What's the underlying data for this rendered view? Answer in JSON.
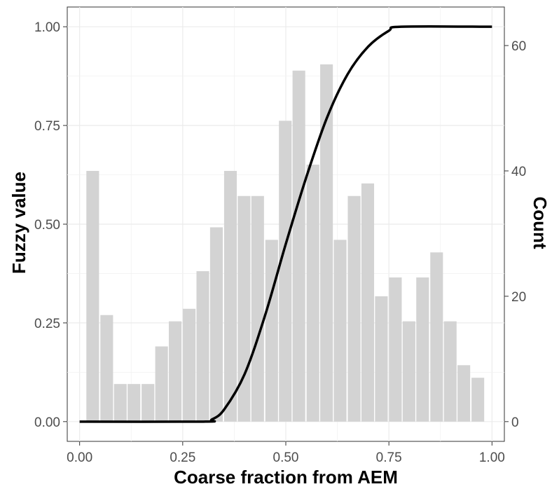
{
  "chart_data": {
    "type": "bar",
    "xlabel": "Coarse fraction from AEM",
    "ylabel": "Fuzzy value",
    "y2label": "Count",
    "xlim": [
      -0.03,
      1.03
    ],
    "ylim": [
      -0.05,
      1.05
    ],
    "y2lim": [
      -3.15,
      66.15
    ],
    "x_ticks": [
      "0.00",
      "0.25",
      "0.50",
      "0.75",
      "1.00"
    ],
    "y_ticks": [
      "0.00",
      "0.25",
      "0.50",
      "0.75",
      "1.00"
    ],
    "y2_ticks": [
      "0",
      "20",
      "40",
      "60"
    ],
    "grid": true,
    "histogram": {
      "bin_width": 0.0333,
      "color": "#d3d3d3",
      "bins": [
        {
          "x": 0.033,
          "count": 40
        },
        {
          "x": 0.067,
          "count": 17
        },
        {
          "x": 0.1,
          "count": 6
        },
        {
          "x": 0.133,
          "count": 6
        },
        {
          "x": 0.167,
          "count": 6
        },
        {
          "x": 0.2,
          "count": 12
        },
        {
          "x": 0.233,
          "count": 16
        },
        {
          "x": 0.267,
          "count": 18
        },
        {
          "x": 0.3,
          "count": 24
        },
        {
          "x": 0.333,
          "count": 31
        },
        {
          "x": 0.367,
          "count": 40
        },
        {
          "x": 0.4,
          "count": 36
        },
        {
          "x": 0.433,
          "count": 36
        },
        {
          "x": 0.467,
          "count": 29
        },
        {
          "x": 0.5,
          "count": 48
        },
        {
          "x": 0.533,
          "count": 56
        },
        {
          "x": 0.567,
          "count": 41
        },
        {
          "x": 0.6,
          "count": 57
        },
        {
          "x": 0.633,
          "count": 29
        },
        {
          "x": 0.667,
          "count": 36
        },
        {
          "x": 0.7,
          "count": 38
        },
        {
          "x": 0.733,
          "count": 20
        },
        {
          "x": 0.767,
          "count": 23
        },
        {
          "x": 0.8,
          "count": 16
        },
        {
          "x": 0.833,
          "count": 23
        },
        {
          "x": 0.867,
          "count": 27
        },
        {
          "x": 0.9,
          "count": 16
        },
        {
          "x": 0.933,
          "count": 9
        },
        {
          "x": 0.967,
          "count": 7
        }
      ]
    },
    "fuzzy_curve": {
      "color": "#000000",
      "points": [
        [
          0.0,
          0.0
        ],
        [
          0.3,
          0.0
        ],
        [
          0.32,
          0.005
        ],
        [
          0.35,
          0.03
        ],
        [
          0.4,
          0.12
        ],
        [
          0.45,
          0.27
        ],
        [
          0.5,
          0.45
        ],
        [
          0.55,
          0.62
        ],
        [
          0.6,
          0.77
        ],
        [
          0.65,
          0.88
        ],
        [
          0.7,
          0.95
        ],
        [
          0.75,
          0.99
        ],
        [
          0.78,
          1.0
        ],
        [
          1.0,
          1.0
        ]
      ]
    }
  }
}
